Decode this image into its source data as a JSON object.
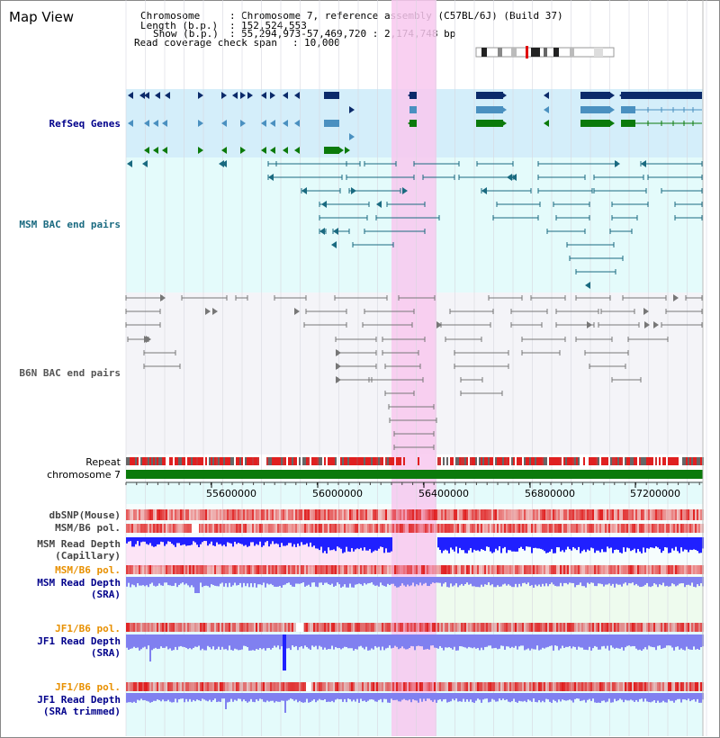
{
  "title": "Map View",
  "info": {
    "chromosome_key": "Chromosome",
    "chromosome_val": "Chromosome 7, reference assembly (C57BL/6J) (Build 37)",
    "length_key": "Length (b.p.)",
    "length_val": "152,524,553",
    "show_key": "Show (b.p.)",
    "show_val": "55,294,973-57,469,720 : 2,174,748 bp",
    "coverage_key": "Read coverage check span",
    "coverage_val": "10,000"
  },
  "tracks": {
    "refseq": "RefSeq Genes",
    "msm_bac": "MSM BAC end pairs",
    "b6n_bac": "B6N BAC end pairs",
    "repeat": "Repeat",
    "chromosome": "chromosome 7",
    "dbsnp": "dbSNP(Mouse)",
    "msm_b6_pol": "MSM/B6 pol.",
    "msm_read_depth_cap_1": "MSM Read Depth",
    "msm_read_depth_cap_2": "(Capillary)",
    "msm_b6_pol_2": "MSM/B6 pol.",
    "msm_read_depth_sra_1": "MSM Read Depth",
    "msm_read_depth_sra_2": "(SRA)",
    "jf1_b6_pol": "JF1/B6 pol.",
    "jf1_read_depth_sra_1": "JF1 Read Depth",
    "jf1_read_depth_sra_2": "(SRA)",
    "jf1_b6_pol_2": "JF1/B6 pol.",
    "jf1_read_depth_trim_1": "JF1 Read Depth",
    "jf1_read_depth_trim_2": "(SRA trimmed)"
  },
  "axis": {
    "ticks": [
      "55600000",
      "56000000",
      "56400000",
      "56800000",
      "57200000"
    ]
  },
  "colors": {
    "highlight": "#f8c8ee",
    "refseq_bg": "#d4eefa",
    "msm_bg": "#e4fbfb",
    "b6n_bg": "#f4f4f8",
    "dark_blue": "#0b2a6a",
    "mid_blue": "#4a90c0",
    "green": "#0b7a0b",
    "teal": "#1a6a80",
    "grey": "#777777",
    "red": "#e02020",
    "depth_blue": "#2020ff",
    "depth_light": "#8080f0",
    "label_blue": "#00008b",
    "label_teal": "#1a6a80",
    "label_orange": "#e89000"
  }
}
